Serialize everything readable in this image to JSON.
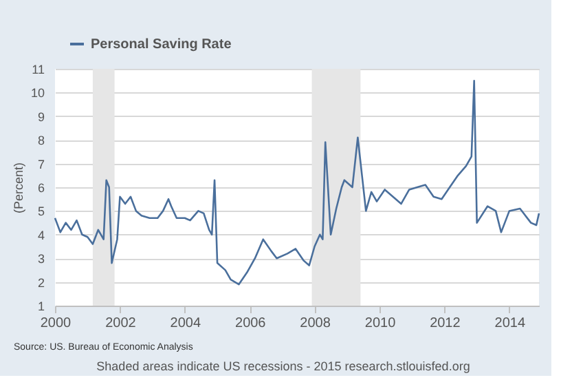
{
  "chart_data": {
    "type": "line",
    "ylabel": "(Percent)",
    "x": [
      "2000-01",
      "2000-03",
      "2000-05",
      "2000-07",
      "2000-09",
      "2000-11",
      "2001-01",
      "2001-03",
      "2001-05",
      "2001-07",
      "2001-08",
      "2001-09",
      "2001-10",
      "2001-12",
      "2002-01",
      "2002-03",
      "2002-05",
      "2002-07",
      "2002-09",
      "2002-12",
      "2003-03",
      "2003-05",
      "2003-07",
      "2003-08",
      "2003-10",
      "2004-01",
      "2004-03",
      "2004-06",
      "2004-08",
      "2004-10",
      "2004-11",
      "2004-12",
      "2005-01",
      "2005-04",
      "2005-06",
      "2005-09",
      "2005-12",
      "2006-03",
      "2006-06",
      "2006-09",
      "2006-11",
      "2007-03",
      "2007-06",
      "2007-09",
      "2007-11",
      "2008-01",
      "2008-03",
      "2008-04",
      "2008-05",
      "2008-07",
      "2008-09",
      "2008-11",
      "2008-12",
      "2009-03",
      "2009-05",
      "2009-08",
      "2009-10",
      "2009-12",
      "2010-03",
      "2010-06",
      "2010-09",
      "2010-12",
      "2011-03",
      "2011-06",
      "2011-09",
      "2011-12",
      "2012-03",
      "2012-06",
      "2012-09",
      "2012-11",
      "2012-12",
      "2013-01",
      "2013-05",
      "2013-08",
      "2013-10",
      "2014-01",
      "2014-05",
      "2014-09",
      "2014-11",
      "2014-12"
    ],
    "series": [
      {
        "name": "Personal Saving Rate",
        "color": "#4a6f9c",
        "values": [
          4.7,
          4.1,
          4.5,
          4.2,
          4.6,
          4.0,
          3.9,
          3.6,
          4.2,
          3.8,
          6.3,
          6.0,
          2.8,
          3.8,
          5.6,
          5.3,
          5.6,
          5.0,
          4.8,
          4.7,
          4.7,
          5.0,
          5.5,
          5.2,
          4.7,
          4.7,
          4.6,
          5.0,
          4.9,
          4.2,
          4.0,
          6.3,
          2.8,
          2.5,
          2.1,
          1.9,
          2.4,
          3.0,
          3.8,
          3.3,
          3.0,
          3.2,
          3.4,
          2.9,
          2.7,
          3.5,
          4.0,
          3.8,
          7.9,
          4.0,
          5.1,
          6.0,
          6.3,
          6.0,
          8.1,
          5.0,
          5.8,
          5.4,
          5.9,
          5.6,
          5.3,
          5.9,
          6.0,
          6.1,
          5.6,
          5.5,
          6.0,
          6.5,
          6.9,
          7.3,
          10.5,
          4.5,
          5.2,
          5.0,
          4.1,
          5.0,
          5.1,
          4.5,
          4.4,
          4.9
        ]
      }
    ],
    "xlim": [
      "2000-01",
      "2014-12"
    ],
    "xticks": [
      "2000",
      "2002",
      "2004",
      "2006",
      "2008",
      "2010",
      "2012",
      "2014"
    ],
    "ylim": [
      1,
      11
    ],
    "yticks": [
      1,
      2,
      3,
      4,
      5,
      6,
      7,
      8,
      9,
      10,
      11
    ],
    "grid": "y",
    "legend": "top left",
    "bands": [
      {
        "axis": "x",
        "from": "2001-03",
        "to": "2001-11",
        "color": "#e6e6e6"
      },
      {
        "axis": "x",
        "from": "2007-12",
        "to": "2009-06",
        "color": "#e6e6e6"
      }
    ],
    "annotations": [
      "Source: US. Bureau of Economic Analysis",
      "Shaded areas indicate US recessions - 2015 research.stlouisfed.org"
    ]
  }
}
